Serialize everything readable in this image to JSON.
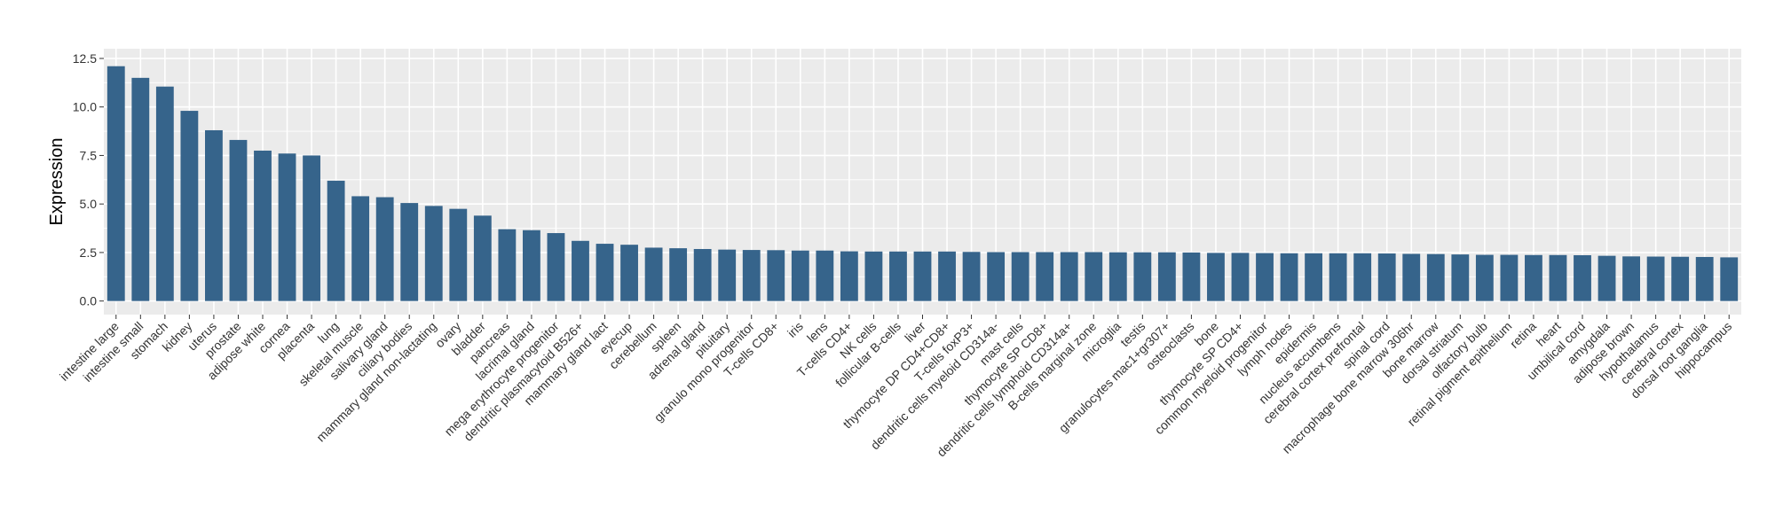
{
  "chart_data": {
    "type": "bar",
    "ylabel": "Expression",
    "xlabel": "",
    "ylim": [
      -0.7,
      13.0
    ],
    "yticks": [
      0.0,
      2.5,
      5.0,
      7.5,
      10.0,
      12.5
    ],
    "ytick_labels": [
      "0.0",
      "2.5",
      "5.0",
      "7.5",
      "10.0",
      "12.5"
    ],
    "grid": true,
    "bar_color": "#36648b",
    "panel_color": "#ebebeb",
    "categories": [
      "intestine large",
      "intestine small",
      "stomach",
      "kidney",
      "uterus",
      "prostate",
      "adipose white",
      "cornea",
      "placenta",
      "lung",
      "skeletal muscle",
      "salivary gland",
      "ciliary bodies",
      "mammary gland non-lactating",
      "ovary",
      "bladder",
      "pancreas",
      "lacrimal gland",
      "mega erythrocyte progenitor",
      "dendritic plasmacytoid B526+",
      "mammary gland  lact",
      "eyecup",
      "cerebellum",
      "spleen",
      "adrenal gland",
      "pituitary",
      "granulo mono progenitor",
      "T-cells CD8+",
      "iris",
      "lens",
      "T-cells CD4+",
      "NK cells",
      "follicular B-cells",
      "liver",
      "thymocyte DP CD4+CD8+",
      "T-cells foxP3+",
      "dendritic cells myeloid CD314a-",
      "mast cells",
      "thymocyte SP CD8+",
      "dendritic cells lymphoid CD314a+",
      "B-cells marginal zone",
      "microglia",
      "testis",
      "granulocytes mac1+gr307+",
      "osteoclasts",
      "bone",
      "thymocyte SP CD4+",
      "common myeloid progenitor",
      "lymph nodes",
      "epidermis",
      "nucleus accumbens",
      "cerebral cortex prefrontal",
      "spinal cord",
      "macrophage bone marrow 306hr",
      "bone marrow",
      "dorsal striatum",
      "olfactory bulb",
      "retinal pigment epithelium",
      "retina",
      "heart",
      "umbilical cord",
      "amygdala",
      "adipose brown",
      "hypothalamus",
      "cerebral cortex",
      "dorsal root ganglia",
      "hippocampus"
    ],
    "values": [
      12.1,
      11.5,
      11.05,
      9.8,
      8.8,
      8.3,
      7.75,
      7.6,
      7.5,
      6.2,
      5.4,
      5.35,
      5.05,
      4.9,
      4.75,
      4.4,
      3.7,
      3.65,
      3.5,
      3.1,
      2.95,
      2.9,
      2.75,
      2.72,
      2.68,
      2.65,
      2.63,
      2.62,
      2.6,
      2.6,
      2.56,
      2.55,
      2.55,
      2.55,
      2.55,
      2.53,
      2.52,
      2.52,
      2.52,
      2.52,
      2.52,
      2.51,
      2.51,
      2.51,
      2.5,
      2.48,
      2.48,
      2.47,
      2.46,
      2.46,
      2.46,
      2.46,
      2.45,
      2.43,
      2.42,
      2.4,
      2.38,
      2.38,
      2.37,
      2.37,
      2.36,
      2.33,
      2.3,
      2.29,
      2.28,
      2.27,
      2.25
    ]
  }
}
